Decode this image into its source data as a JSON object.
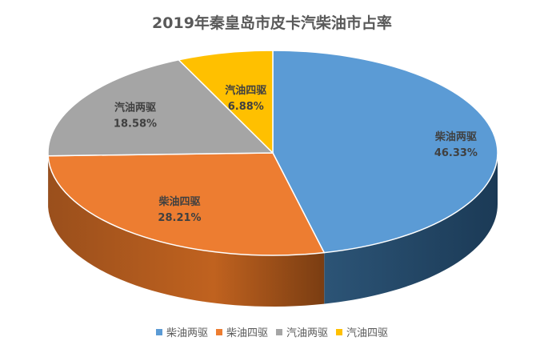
{
  "chart_data": {
    "type": "pie",
    "title": "2019年秦皇岛市皮卡汽柴油市占率",
    "categories": [
      "柴油两驱",
      "柴油四驱",
      "汽油两驱",
      "汽油四驱"
    ],
    "values": [
      46.33,
      28.21,
      18.58,
      6.88
    ],
    "value_labels": [
      "46.33%",
      "28.21%",
      "18.58%",
      "6.88%"
    ],
    "colors": [
      "#5B9BD5",
      "#ED7D31",
      "#A5A5A5",
      "#FFC000"
    ],
    "legend_position": "bottom",
    "style": "3d"
  }
}
